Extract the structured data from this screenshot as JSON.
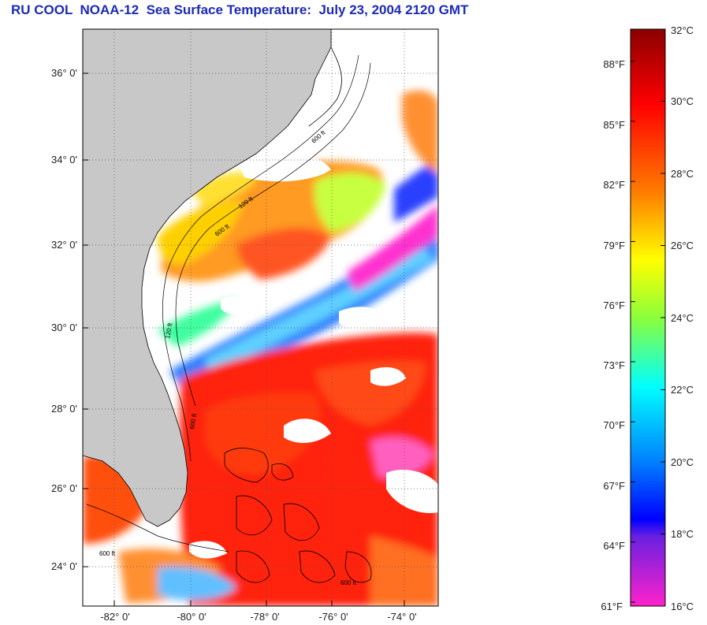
{
  "title": "RU COOL  NOAA-12  Sea Surface Temperature:  July 23, 2004 2120 GMT",
  "map": {
    "lat_labels": [
      "36° 0'",
      "34° 0'",
      "32° 0'",
      "30° 0'",
      "28° 0'",
      "26° 0'",
      "24° 0'"
    ],
    "lon_labels": [
      "-82° 0'",
      "-80° 0'",
      "-78° 0'",
      "-76° 0'",
      "-74° 0'"
    ],
    "isobath_labels": [
      "120 ft",
      "600 ft",
      "600 ft",
      "600 ft",
      "600 ft",
      "120 ft",
      "600 ft"
    ],
    "colors": {
      "land": "#c8c8c8",
      "cloud": "#ffffff",
      "frame": "#000000"
    }
  },
  "colorbar": {
    "celsius_labels": [
      "32°C",
      "30°C",
      "28°C",
      "26°C",
      "24°C",
      "22°C",
      "20°C",
      "18°C",
      "16°C"
    ],
    "fahrenheit_labels": [
      "88°F",
      "85°F",
      "82°F",
      "79°F",
      "76°F",
      "73°F",
      "70°F",
      "67°F",
      "64°F",
      "61°F"
    ],
    "celsius_range": [
      16,
      32
    ],
    "gradient": [
      "#8a0000",
      "#ff0000",
      "#ff8c00",
      "#ffff00",
      "#7fff3f",
      "#00ffff",
      "#0077ff",
      "#0000ff",
      "#7f00ff",
      "#ff22cc"
    ]
  }
}
